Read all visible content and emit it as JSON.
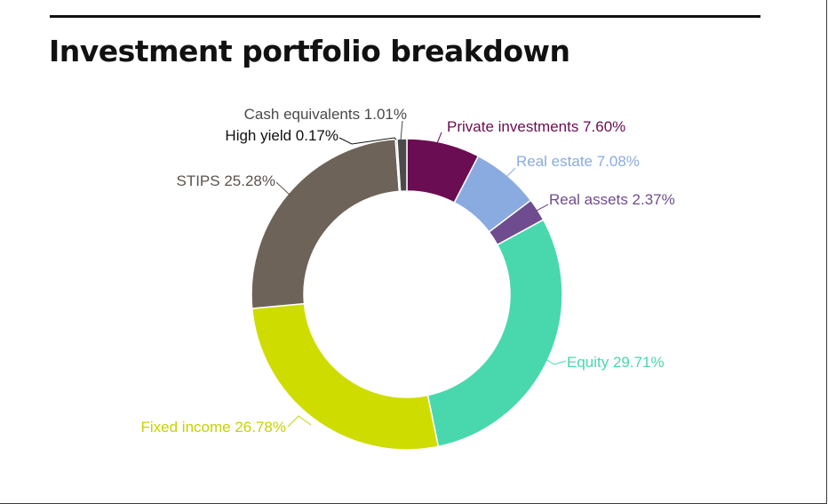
{
  "title": "Investment portfolio breakdown",
  "chart_data": {
    "type": "pie",
    "variant": "donut",
    "title": "Investment portfolio breakdown",
    "slices": [
      {
        "key": "private-investments",
        "name": "Private investments",
        "label": "Private investments  7.60%",
        "value": 7.6,
        "color": "#6b0d52",
        "text_color": "#6b0d52"
      },
      {
        "key": "real-estate",
        "name": "Real estate",
        "label": "Real estate 7.08%",
        "value": 7.08,
        "color": "#8aabe0",
        "text_color": "#8aabe0"
      },
      {
        "key": "real-assets",
        "name": "Real assets",
        "label": "Real assets 2.37%",
        "value": 2.37,
        "color": "#6f4c8f",
        "text_color": "#6f4c8f"
      },
      {
        "key": "equity",
        "name": "Equity",
        "label": "Equity 29.71%",
        "value": 29.71,
        "color": "#49d8ae",
        "text_color": "#49d8ae"
      },
      {
        "key": "fixed-income",
        "name": "Fixed income",
        "label": "Fixed income 26.78%",
        "value": 26.78,
        "color": "#cfdc00",
        "text_color": "#c6d200"
      },
      {
        "key": "stips",
        "name": "STIPS",
        "label": "STIPS 25.28%",
        "value": 25.28,
        "color": "#6e6359",
        "text_color": "#5c534b"
      },
      {
        "key": "high-yield",
        "name": "High yield",
        "label": "High yield 0.17%",
        "value": 0.17,
        "color": "#8e8e8e",
        "text_color": "#111111"
      },
      {
        "key": "cash-equivalents",
        "name": "Cash equivalents",
        "label": "Cash equivalents 1.01%",
        "value": 1.01,
        "color": "#4b4b4b",
        "text_color": "#4a4a4a"
      }
    ]
  }
}
